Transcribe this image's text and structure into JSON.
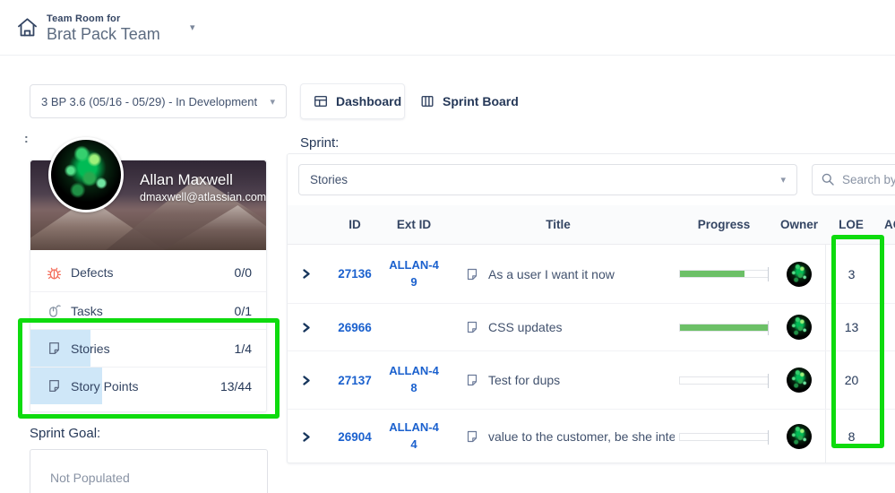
{
  "header": {
    "team_room_label": "Team Room for",
    "team_name": "Brat Pack Team"
  },
  "toolbar": {
    "sprint_select_value": "3 BP 3.6 (05/16 - 05/29) - In Development",
    "dashboard_label": "Dashboard",
    "sprint_board_label": "Sprint Board"
  },
  "profile": {
    "side_label": ":",
    "name": "Allan Maxwell",
    "email": "dmaxwell@atlassian.com"
  },
  "stats": {
    "items": [
      {
        "label": "Defects",
        "value": "0/0",
        "icon": "bug-icon"
      },
      {
        "label": "Tasks",
        "value": "0/1",
        "icon": "mouse-icon"
      },
      {
        "label": "Stories",
        "value": "1/4",
        "icon": "story-icon"
      },
      {
        "label": "Story Points",
        "value": "13/44",
        "icon": "story-icon"
      }
    ]
  },
  "sprint_goal": {
    "label": "Sprint Goal:",
    "value": "Not Populated"
  },
  "sprint_section": {
    "label": "Sprint:",
    "type_select_value": "Stories",
    "search_placeholder": "Search by ID"
  },
  "table": {
    "columns": [
      "ID",
      "Ext ID",
      "Title",
      "Progress",
      "Owner",
      "LOE",
      "AC"
    ],
    "rows": [
      {
        "id": "27136",
        "ext_id": "ALLAN-49",
        "title": "As a user I want it now",
        "progress_pct": 73,
        "loe": "3"
      },
      {
        "id": "26966",
        "ext_id": "",
        "title": "CSS updates",
        "progress_pct": 100,
        "loe": "13"
      },
      {
        "id": "27137",
        "ext_id": "ALLAN-48",
        "title": "Test for dups",
        "progress_pct": 0,
        "loe": "20"
      },
      {
        "id": "26904",
        "ext_id": "ALLAN-44",
        "title": "value to the customer, be she inter…",
        "progress_pct": 0,
        "loe": "8"
      }
    ]
  },
  "icons": {
    "caret_down": "▾"
  },
  "colors": {
    "link_blue": "#1b61ce",
    "progress_green": "#6cc067",
    "annotation_green": "#0edb0e",
    "selection_blue": "#cfe7f8",
    "defect_red": "#f4705e",
    "navy_text": "#253858"
  }
}
